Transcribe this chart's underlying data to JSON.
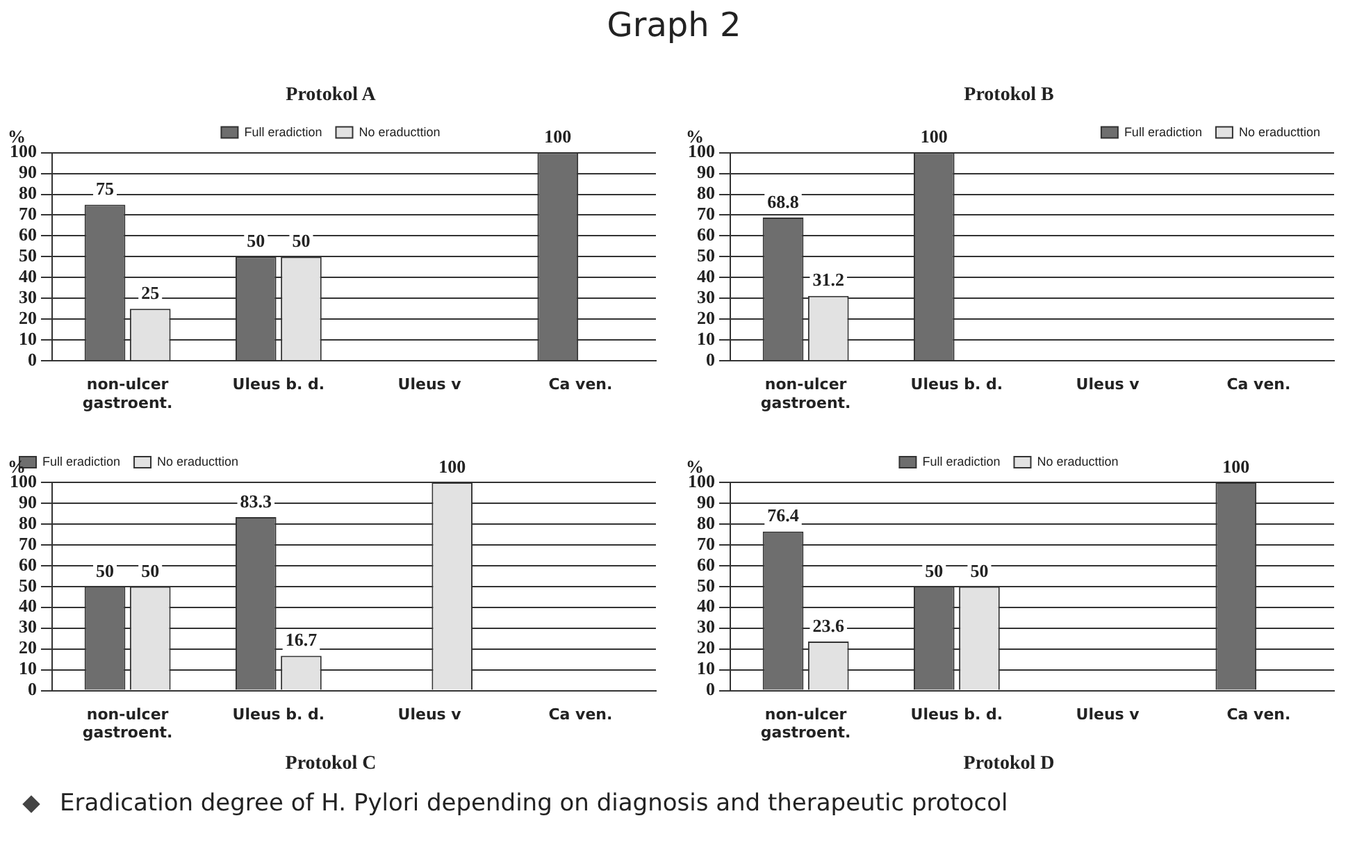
{
  "chart_data": [
    {
      "type": "other",
      "title": "Graph 2"
    },
    {
      "type": "bar",
      "title": "Protokol A",
      "ylabel": "%",
      "categories": [
        "non-ulcer gastroent.",
        "Uleus b. d.",
        "Uleus v",
        "Ca ven."
      ],
      "ylim": [
        0,
        100
      ],
      "yticks": [
        0,
        10,
        20,
        30,
        40,
        50,
        60,
        70,
        80,
        90,
        100
      ],
      "grid": "y",
      "legend": "top",
      "data_labels": true,
      "series": [
        {
          "name": "Full eradiction",
          "color": "#6e6e6e",
          "values": [
            75,
            50,
            null,
            100
          ]
        },
        {
          "name": "No eraducttion",
          "color": "#e2e2e2",
          "values": [
            25,
            50,
            null,
            null
          ]
        }
      ]
    },
    {
      "type": "bar",
      "title": "Protokol B",
      "ylabel": "%",
      "categories": [
        "non-ulcer gastroent.",
        "Uleus b. d.",
        "Uleus v",
        "Ca ven."
      ],
      "ylim": [
        0,
        100
      ],
      "yticks": [
        0,
        10,
        20,
        30,
        40,
        50,
        60,
        70,
        80,
        90,
        100
      ],
      "grid": "y",
      "legend": "top right",
      "data_labels": true,
      "series": [
        {
          "name": "Full eradiction",
          "color": "#6e6e6e",
          "values": [
            68.8,
            100,
            null,
            null
          ]
        },
        {
          "name": "No eraducttion",
          "color": "#e2e2e2",
          "values": [
            31.2,
            null,
            null,
            null
          ]
        }
      ]
    },
    {
      "type": "bar",
      "title": "Protokol C",
      "ylabel": "%",
      "categories": [
        "non-ulcer gastroent.",
        "Uleus b. d.",
        "Uleus v",
        "Ca ven."
      ],
      "ylim": [
        0,
        100
      ],
      "yticks": [
        0,
        10,
        20,
        30,
        40,
        50,
        60,
        70,
        80,
        90,
        100
      ],
      "grid": "y",
      "legend": "top left",
      "data_labels": true,
      "series": [
        {
          "name": "Full eradiction",
          "color": "#6e6e6e",
          "values": [
            50,
            83.3,
            null,
            null
          ]
        },
        {
          "name": "No eraducttion",
          "color": "#e2e2e2",
          "values": [
            50,
            16.7,
            100,
            null
          ]
        }
      ]
    },
    {
      "type": "bar",
      "title": "Protokol D",
      "ylabel": "%",
      "categories": [
        "non-ulcer gastroent.",
        "Uleus b. d.",
        "Uleus v",
        "Ca ven."
      ],
      "ylim": [
        0,
        100
      ],
      "yticks": [
        0,
        10,
        20,
        30,
        40,
        50,
        60,
        70,
        80,
        90,
        100
      ],
      "grid": "y",
      "legend": "top",
      "data_labels": true,
      "series": [
        {
          "name": "Full eradiction",
          "color": "#6e6e6e",
          "values": [
            76.4,
            50,
            null,
            100
          ]
        },
        {
          "name": "No eraducttion",
          "color": "#e2e2e2",
          "values": [
            23.6,
            50,
            null,
            null
          ]
        }
      ]
    },
    {
      "type": "other",
      "annotations": [
        "Eradication degree of H. Pylori depending on diagnosis and therapeutic protocol"
      ]
    }
  ]
}
